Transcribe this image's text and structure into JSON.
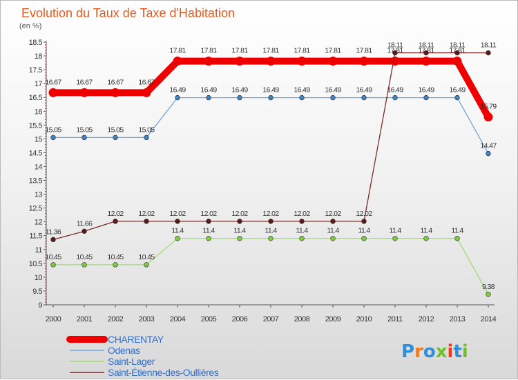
{
  "chart_data": {
    "type": "line",
    "title": "Evolution du Taux de Taxe d'Habitation",
    "subtitle": "(en %)",
    "xlabel": "",
    "ylabel": "",
    "ylim": [
      9,
      18.5
    ],
    "ytick_step": 0.5,
    "grid": false,
    "legend_position": "bottom-left",
    "x": [
      "2000",
      "2001",
      "2002",
      "2003",
      "2004",
      "2005",
      "2006",
      "2007",
      "2008",
      "2009",
      "2010",
      "2011",
      "2012",
      "2013",
      "2014"
    ],
    "series": [
      {
        "name": "CHARENTAY",
        "color": "#ee0000",
        "style": "thick",
        "values": [
          16.67,
          16.67,
          16.67,
          16.67,
          17.81,
          17.81,
          17.81,
          17.81,
          17.81,
          17.81,
          17.81,
          17.81,
          17.81,
          17.81,
          15.79
        ],
        "labels": [
          "16.67",
          "16.67",
          "16.67",
          "16.67",
          "17.81",
          "17.81",
          "17.81",
          "17.81",
          "17.81",
          "17.81",
          "17.81",
          "17.81",
          "17.81",
          "17.81",
          "15.79"
        ]
      },
      {
        "name": "Odenas",
        "color": "#6fa6d8",
        "marker": "#3b82c4",
        "style": "thin",
        "values": [
          15.05,
          15.05,
          15.05,
          15.05,
          16.49,
          16.49,
          16.49,
          16.49,
          16.49,
          16.49,
          16.49,
          16.49,
          16.49,
          16.49,
          14.47
        ],
        "labels": [
          "15.05",
          "15.05",
          "15.05",
          "15.05",
          "16.49",
          "16.49",
          "16.49",
          "16.49",
          "16.49",
          "16.49",
          "16.49",
          "16.49",
          "16.49",
          "16.49",
          "14.47"
        ]
      },
      {
        "name": "Saint-Lager",
        "color": "#9fdc6e",
        "marker": "#7ccc3e",
        "style": "thin",
        "values": [
          10.45,
          10.45,
          10.45,
          10.45,
          11.4,
          11.4,
          11.4,
          11.4,
          11.4,
          11.4,
          11.4,
          11.4,
          11.4,
          11.4,
          9.38
        ],
        "labels": [
          "10.45",
          "10.45",
          "10.45",
          "10.45",
          "11.4",
          "11.4",
          "11.4",
          "11.4",
          "11.4",
          "11.4",
          "11.4",
          "11.4",
          "11.4",
          "11.4",
          "9.38"
        ]
      },
      {
        "name": "Saint-Étienne-des-Oullières",
        "color": "#7a2a2a",
        "marker": "#5a1a1a",
        "style": "thin",
        "values": [
          11.36,
          11.66,
          12.02,
          12.02,
          12.02,
          12.02,
          12.02,
          12.02,
          12.02,
          12.02,
          12.02,
          18.11,
          18.11,
          18.11,
          18.11
        ],
        "labels": [
          "11.36",
          "11.66",
          "12.02",
          "12.02",
          "12.02",
          "12.02",
          "12.02",
          "12.02",
          "12.02",
          "12.02",
          "12.02",
          "18.11",
          "18.11",
          "18.11",
          "18.11"
        ]
      }
    ]
  },
  "logo": {
    "text": "Proxiti",
    "letter_colors": [
      "#2f8fd8",
      "#ef7a1a",
      "#2f8fd8",
      "#6fbf2a",
      "#ef3a1a",
      "#2f8fd8",
      "#6fbf2a"
    ]
  }
}
